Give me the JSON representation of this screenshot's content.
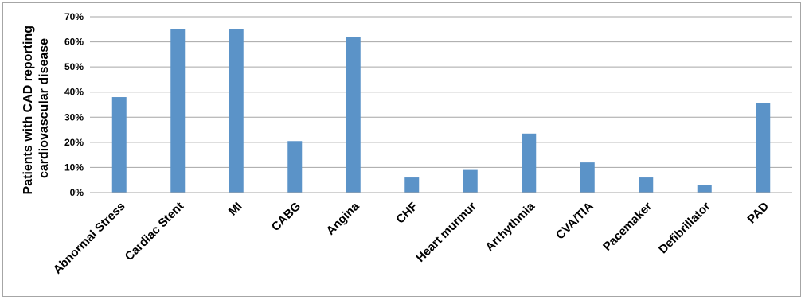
{
  "chart_data": {
    "type": "bar",
    "title": "",
    "xlabel": "",
    "ylabel_lines": [
      "Patients with CAD reporting",
      "cardiovascular disease"
    ],
    "ylim": [
      0,
      70
    ],
    "ytick_values": [
      0,
      10,
      20,
      30,
      40,
      50,
      60,
      70
    ],
    "ytick_labels": [
      "0%",
      "10%",
      "20%",
      "30%",
      "40%",
      "50%",
      "60%",
      "70%"
    ],
    "grid": true,
    "legend": "none",
    "bar_color": "#5b93c8",
    "categories": [
      "Abnormal Stress",
      "Cardiac Stent",
      "MI",
      "CABG",
      "Angina",
      "CHF",
      "Heart murmur",
      "Arrhythmia",
      "CVA/TIA",
      "Pacemaker",
      "Defibrillator",
      "PAD"
    ],
    "values": [
      38,
      65,
      65,
      20.5,
      62,
      6,
      9,
      23.5,
      12,
      6,
      3,
      35.5
    ]
  }
}
